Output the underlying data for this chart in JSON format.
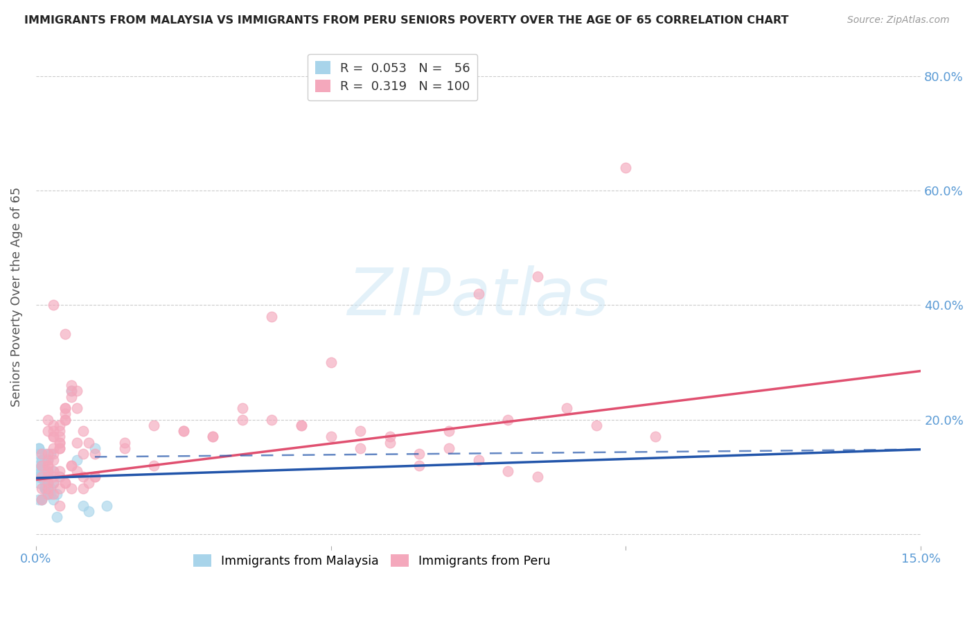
{
  "title": "IMMIGRANTS FROM MALAYSIA VS IMMIGRANTS FROM PERU SENIORS POVERTY OVER THE AGE OF 65 CORRELATION CHART",
  "source": "Source: ZipAtlas.com",
  "ylabel": "Seniors Poverty Over the Age of 65",
  "xmin": 0.0,
  "xmax": 0.15,
  "ymin": -0.02,
  "ymax": 0.85,
  "malaysia_color": "#a8d4ea",
  "peru_color": "#f4a8bc",
  "malaysia_R": 0.053,
  "malaysia_N": 56,
  "peru_R": 0.319,
  "peru_N": 100,
  "trend_malaysia_color": "#2255aa",
  "trend_peru_color": "#e05070",
  "background_color": "#ffffff",
  "grid_color": "#cccccc",
  "axis_label_color": "#5b9bd5",
  "r_label_color": "#333333",
  "legend_label1": "Immigrants from Malaysia",
  "legend_label2": "Immigrants from Peru",
  "watermark": "ZIPatlas",
  "malaysia_x": [
    0.0005,
    0.001,
    0.0015,
    0.0005,
    0.002,
    0.001,
    0.0015,
    0.002,
    0.0005,
    0.001,
    0.0015,
    0.002,
    0.001,
    0.0005,
    0.0015,
    0.002,
    0.001,
    0.002,
    0.0005,
    0.0015,
    0.003,
    0.001,
    0.0005,
    0.002,
    0.0015,
    0.0025,
    0.001,
    0.0005,
    0.0015,
    0.002,
    0.0035,
    0.001,
    0.0015,
    0.0005,
    0.0025,
    0.0015,
    0.001,
    0.003,
    0.0005,
    0.002,
    0.004,
    0.0015,
    0.001,
    0.0025,
    0.0005,
    0.002,
    0.003,
    0.001,
    0.0015,
    0.0035,
    0.006,
    0.007,
    0.008,
    0.009,
    0.01,
    0.012
  ],
  "malaysia_y": [
    0.1,
    0.12,
    0.08,
    0.15,
    0.07,
    0.11,
    0.09,
    0.13,
    0.06,
    0.1,
    0.14,
    0.08,
    0.12,
    0.1,
    0.09,
    0.11,
    0.13,
    0.07,
    0.15,
    0.08,
    0.09,
    0.12,
    0.1,
    0.11,
    0.08,
    0.14,
    0.06,
    0.09,
    0.13,
    0.1,
    0.07,
    0.11,
    0.09,
    0.12,
    0.08,
    0.1,
    0.13,
    0.06,
    0.11,
    0.09,
    0.1,
    0.08,
    0.12,
    0.07,
    0.14,
    0.09,
    0.11,
    0.06,
    0.1,
    0.03,
    0.25,
    0.13,
    0.05,
    0.04,
    0.15,
    0.05
  ],
  "peru_x": [
    0.001,
    0.002,
    0.003,
    0.004,
    0.005,
    0.002,
    0.003,
    0.004,
    0.001,
    0.003,
    0.005,
    0.002,
    0.004,
    0.001,
    0.003,
    0.006,
    0.002,
    0.004,
    0.003,
    0.005,
    0.007,
    0.002,
    0.001,
    0.005,
    0.003,
    0.004,
    0.006,
    0.002,
    0.003,
    0.005,
    0.008,
    0.003,
    0.004,
    0.002,
    0.006,
    0.003,
    0.004,
    0.007,
    0.002,
    0.005,
    0.009,
    0.003,
    0.004,
    0.006,
    0.002,
    0.005,
    0.007,
    0.003,
    0.004,
    0.008,
    0.01,
    0.015,
    0.02,
    0.025,
    0.03,
    0.035,
    0.04,
    0.045,
    0.05,
    0.055,
    0.06,
    0.065,
    0.07,
    0.075,
    0.08,
    0.085,
    0.09,
    0.095,
    0.1,
    0.105,
    0.002,
    0.004,
    0.006,
    0.008,
    0.01,
    0.015,
    0.02,
    0.025,
    0.03,
    0.035,
    0.04,
    0.045,
    0.05,
    0.055,
    0.06,
    0.065,
    0.07,
    0.075,
    0.08,
    0.085,
    0.001,
    0.002,
    0.003,
    0.004,
    0.005,
    0.006,
    0.007,
    0.008,
    0.009,
    0.01
  ],
  "peru_y": [
    0.08,
    0.12,
    0.1,
    0.15,
    0.09,
    0.11,
    0.14,
    0.08,
    0.1,
    0.13,
    0.35,
    0.09,
    0.11,
    0.12,
    0.18,
    0.12,
    0.2,
    0.18,
    0.15,
    0.22,
    0.16,
    0.1,
    0.14,
    0.2,
    0.17,
    0.16,
    0.24,
    0.12,
    0.19,
    0.21,
    0.14,
    0.11,
    0.16,
    0.18,
    0.25,
    0.17,
    0.19,
    0.22,
    0.13,
    0.2,
    0.16,
    0.4,
    0.17,
    0.26,
    0.14,
    0.22,
    0.25,
    0.09,
    0.15,
    0.18,
    0.1,
    0.15,
    0.12,
    0.18,
    0.17,
    0.2,
    0.38,
    0.19,
    0.3,
    0.18,
    0.16,
    0.14,
    0.18,
    0.42,
    0.2,
    0.45,
    0.22,
    0.19,
    0.64,
    0.17,
    0.07,
    0.05,
    0.08,
    0.1,
    0.14,
    0.16,
    0.19,
    0.18,
    0.17,
    0.22,
    0.2,
    0.19,
    0.17,
    0.15,
    0.17,
    0.12,
    0.15,
    0.13,
    0.11,
    0.1,
    0.06,
    0.08,
    0.07,
    0.1,
    0.09,
    0.12,
    0.11,
    0.08,
    0.09,
    0.1
  ],
  "malaysia_trend_x0": 0.0,
  "malaysia_trend_x1": 0.15,
  "malaysia_trend_y0": 0.098,
  "malaysia_trend_y1": 0.148,
  "peru_trend_x0": 0.0,
  "peru_trend_x1": 0.15,
  "peru_trend_y0": 0.095,
  "peru_trend_y1": 0.285
}
